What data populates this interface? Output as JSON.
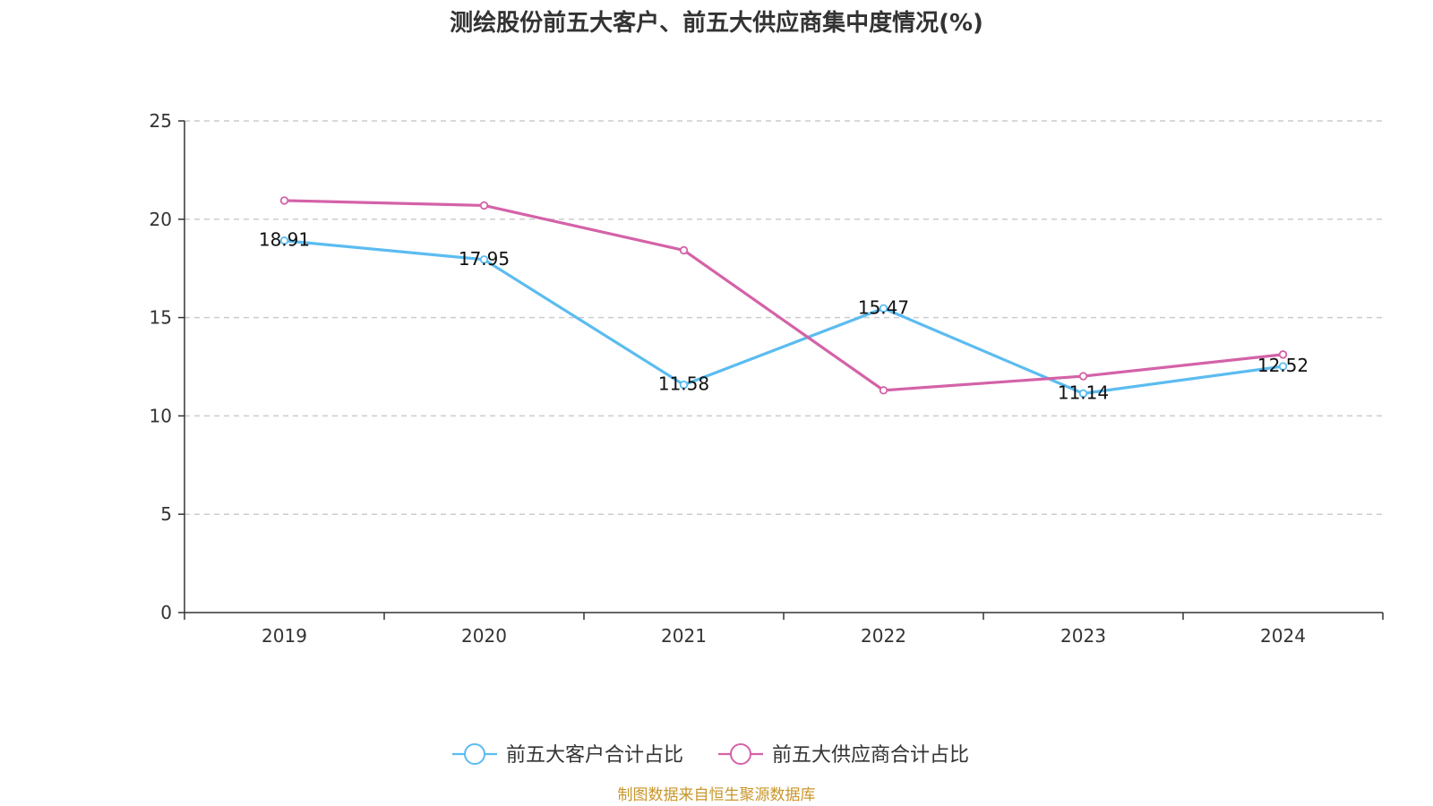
{
  "source_note": "制图数据来自恒生聚源数据库",
  "chart_data": {
    "type": "line",
    "title": "测绘股份前五大客户、前五大供应商集中度情况(%)",
    "xlabel": "",
    "ylabel": "",
    "categories": [
      "2019",
      "2020",
      "2021",
      "2022",
      "2023",
      "2024"
    ],
    "ylim": [
      0,
      25
    ],
    "yticks": [
      0,
      5,
      10,
      15,
      20,
      25
    ],
    "grid": "horizontal-dashed",
    "legend_position": "bottom",
    "series": [
      {
        "name": "前五大客户合计占比",
        "color": "#5bbcf0",
        "values": [
          18.91,
          17.95,
          11.58,
          15.47,
          11.14,
          12.52
        ],
        "labels": [
          "18.91",
          "17.95",
          "11.58",
          "15.47",
          "11.14",
          "12.52"
        ]
      },
      {
        "name": "前五大供应商合计占比",
        "color": "#d462a8",
        "values": [
          20.95,
          20.7,
          18.42,
          11.3,
          12.02,
          13.12
        ]
      }
    ]
  }
}
